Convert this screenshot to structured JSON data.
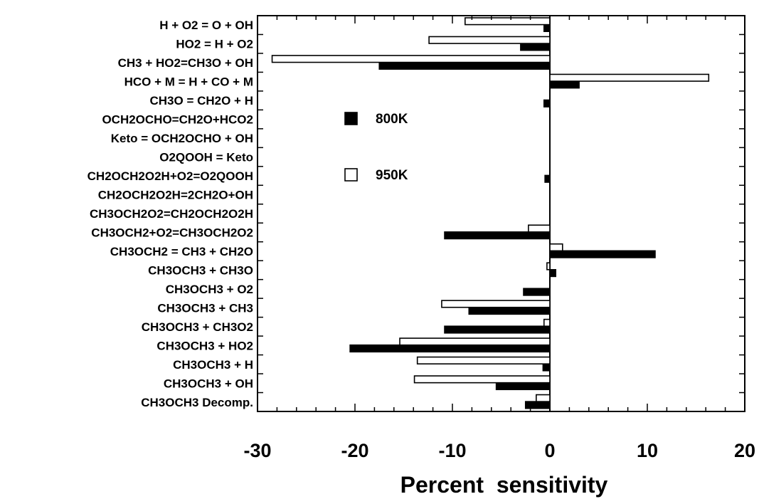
{
  "chart_data": {
    "type": "bar",
    "orientation": "horizontal",
    "xlabel": "Percent  sensitivity",
    "ylabel": "",
    "title": "",
    "xlim": [
      -30,
      20
    ],
    "xticks": [
      "-30",
      "-20",
      "-10",
      "0",
      "10",
      "20"
    ],
    "legend_placement": "inside, left of zero line",
    "grid": false,
    "categories": [
      "H + O2 = O + OH",
      "HO2 = H + O2",
      "CH3 + HO2=CH3O + OH",
      "HCO + M = H + CO + M",
      "CH3O = CH2O + H",
      "OCH2OCHO=CH2O+HCO2",
      "Keto = OCH2OCHO + OH",
      "O2QOOH = Keto",
      "CH2OCH2O2H+O2=O2QOOH",
      "CH2OCH2O2H=2CH2O+OH",
      "CH3OCH2O2=CH2OCH2O2H",
      "CH3OCH2+O2=CH3OCH2O2",
      "CH3OCH2 = CH3 + CH2O",
      "CH3OCH3 + CH3O",
      "CH3OCH3 + O2",
      "CH3OCH3 + CH3",
      "CH3OCH3 + CH3O2",
      "CH3OCH3 + HO2",
      "CH3OCH3 + H",
      "CH3OCH3 + OH",
      "CH3OCH3 Decomp."
    ],
    "series": [
      {
        "name": "800K",
        "color": "#000000",
        "fill": "solid",
        "values": [
          -0.6,
          -3.0,
          -17.5,
          3.0,
          -0.6,
          0,
          0,
          0,
          -0.5,
          0,
          0,
          -10.8,
          10.8,
          0.6,
          -2.7,
          -8.3,
          -10.8,
          -20.5,
          -0.7,
          -5.5,
          -2.5
        ]
      },
      {
        "name": "950K",
        "color": "#ffffff",
        "fill": "open",
        "values": [
          -8.7,
          -12.4,
          -28.5,
          16.3,
          0,
          0,
          0,
          0,
          0,
          0,
          0,
          -2.2,
          1.3,
          -0.3,
          0,
          -11.1,
          -0.6,
          -15.4,
          -13.6,
          -13.9,
          -1.4
        ]
      }
    ]
  }
}
